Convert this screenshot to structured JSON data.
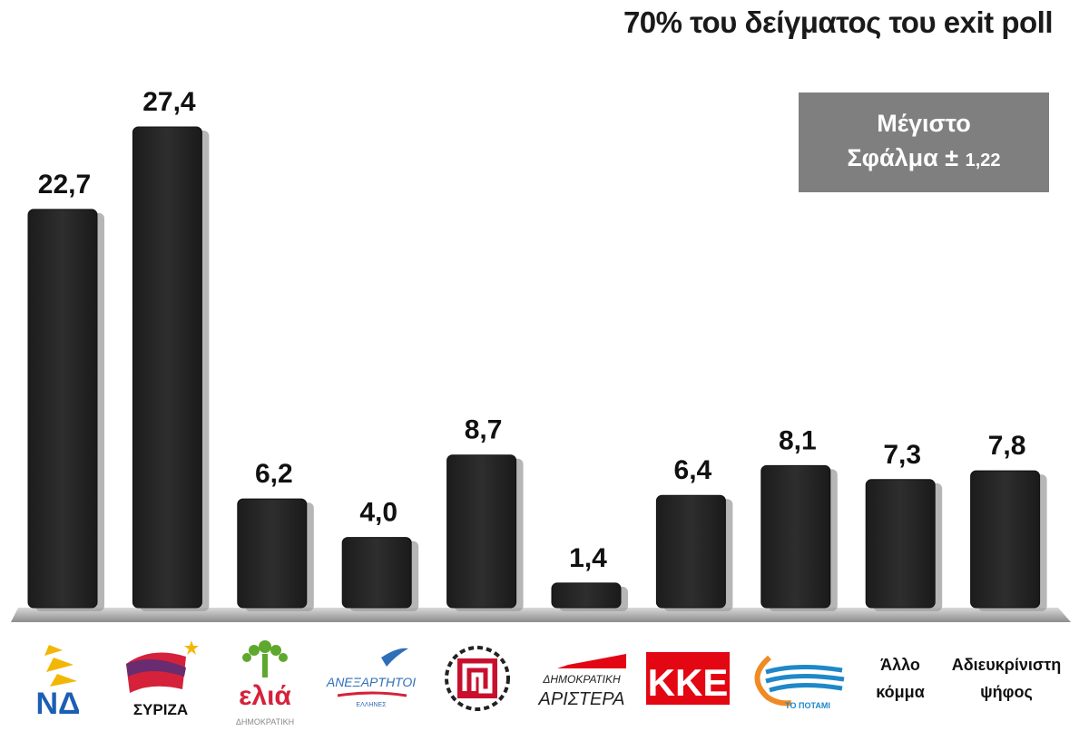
{
  "title": "70% του δείγματος του exit poll",
  "error_box": {
    "line1": "Μέγιστο",
    "line2_main": "Σφάλμα ±",
    "line2_small": "1,22"
  },
  "chart_data": {
    "type": "bar",
    "title": "70% του δείγματος του exit poll",
    "categories": [
      "ΝΔ",
      "ΣΥΡΙΖΑ",
      "ελιά ΔΗΜΟΚΡΑΤΙΚΗ",
      "ΑΝΕΞΑΡΤΗΤΟΙ ΕΛΛΗΝΕΣ",
      "Χρυσή Αυγή",
      "ΔΗΜΟΚΡΑΤΙΚΗ ΑΡΙΣΤΕΡΑ",
      "ΚΚΕ",
      "ΤΟ ΠΟΤΑΜΙ",
      "Άλλο κόμμα",
      "Αδιευκρίνιστη ψήφος"
    ],
    "values": [
      22.7,
      27.4,
      6.2,
      4.0,
      8.7,
      1.4,
      6.4,
      8.1,
      7.3,
      7.8
    ],
    "value_labels": [
      "22,7",
      "27,4",
      "6,2",
      "4,0",
      "8,7",
      "1,4",
      "6,4",
      "8,1",
      "7,3",
      "7,8"
    ],
    "ylim": [
      0,
      27.4
    ],
    "grid": false,
    "bar_color": "#262626"
  },
  "logos": {
    "nd": "ΝΔ",
    "syriza": "ΣΥΡΙΖΑ",
    "elia": "ελιά",
    "elia_sub": "ΔΗΜΟΚΡΑΤΙΚΗ",
    "anel": "ΑΝΕΞΑΡΤΗΤΟΙ",
    "anel_sub": "ΕΛΛΗΝΕΣ",
    "dimar_1": "ΔΗΜΟΚΡΑΤΙΚΗ",
    "dimar_2": "ΑΡΙΣΤΕΡΑ",
    "kke": "ΚΚΕ",
    "potami": "ΤΟ ΠΟΤΑΜΙ",
    "allo_1": "Άλλο",
    "allo_2": "κόμμα",
    "adieuk_1": "Αδιευκρίνιστη",
    "adieuk_2": "ψήφος"
  },
  "colors": {
    "nd_blue": "#1a5fb4",
    "nd_yellow": "#f2b705",
    "syriza_red": "#d6213a",
    "syriza_purple": "#6a2c70",
    "elia_green": "#5fa82e",
    "elia_red": "#d6213a",
    "anel_blue": "#2f6fb8",
    "kke_red": "#e30613",
    "potami_blue": "#1e88c8",
    "potami_orange": "#f08a24"
  }
}
